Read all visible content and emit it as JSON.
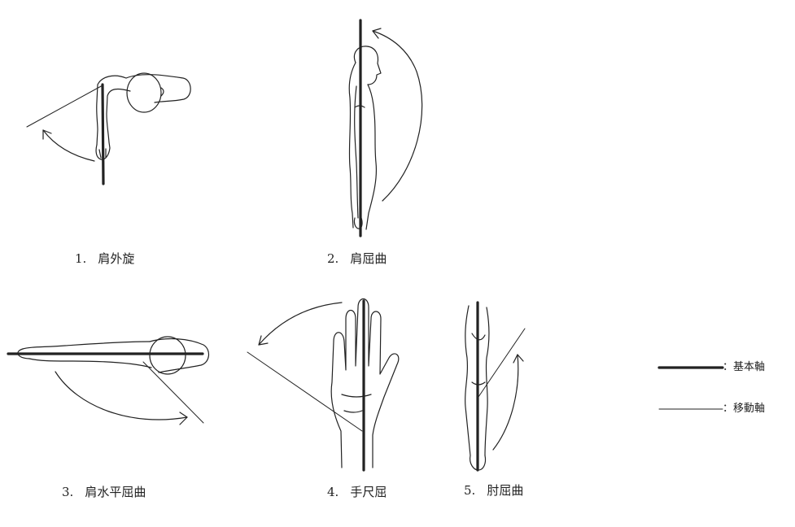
{
  "figures": [
    {
      "number": "1.",
      "label": "肩外旋"
    },
    {
      "number": "2.",
      "label": "肩屈曲"
    },
    {
      "number": "3.",
      "label": "肩水平屈曲"
    },
    {
      "number": "4.",
      "label": "手尺屈"
    },
    {
      "number": "5.",
      "label": "肘屈曲"
    }
  ],
  "legend": {
    "basic_axis": "：基本軸",
    "moving_axis": "：移動軸"
  }
}
